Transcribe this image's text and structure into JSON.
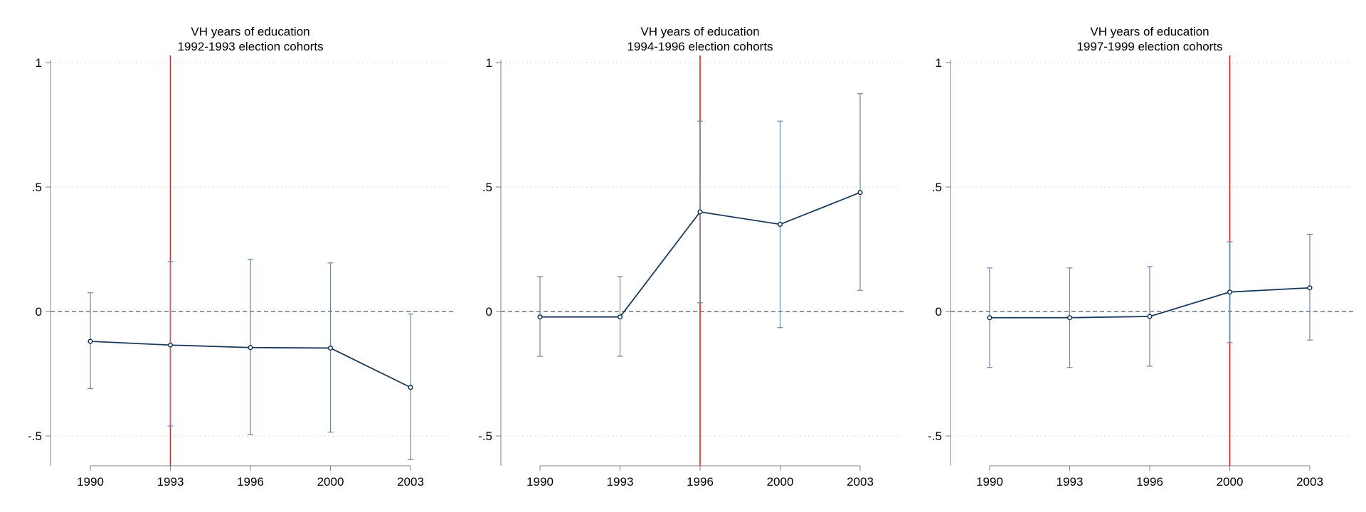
{
  "colors": {
    "series": "#1a3a5c",
    "ci": "#6b86a1",
    "treatment": "#e8201c",
    "zero_line": "#4a5a6a",
    "grid": "#d6dde4",
    "axis": "#808080"
  },
  "chart_data": [
    {
      "type": "line",
      "title": "VH years of education",
      "subtitle": "1992-1993 election cohorts",
      "x": [
        "1990",
        "1993",
        "1996",
        "2000",
        "2003"
      ],
      "ylim": [
        -0.6,
        1.0
      ],
      "yticks": [
        1,
        0.5,
        0,
        -0.5
      ],
      "ytick_labels": [
        "1",
        ".5",
        "0",
        "-.5"
      ],
      "grid": true,
      "treatment_year": "1993",
      "series": [
        {
          "values": [
            -0.12,
            -0.135,
            -0.145,
            -0.147,
            -0.305
          ],
          "ci_low": [
            -0.31,
            -0.46,
            -0.495,
            -0.485,
            -0.595
          ],
          "ci_high": [
            0.075,
            0.2,
            0.21,
            0.195,
            -0.01
          ]
        }
      ]
    },
    {
      "type": "line",
      "title": "VH years of education",
      "subtitle": "1994-1996 election cohorts",
      "x": [
        "1990",
        "1993",
        "1996",
        "2000",
        "2003"
      ],
      "ylim": [
        -0.6,
        1.0
      ],
      "yticks": [
        1,
        0.5,
        0,
        -0.5
      ],
      "ytick_labels": [
        "1",
        ".5",
        "0",
        "-.5"
      ],
      "grid": true,
      "treatment_year": "1996",
      "series": [
        {
          "values": [
            -0.022,
            -0.022,
            0.4,
            0.35,
            0.478
          ],
          "ci_low": [
            -0.18,
            -0.18,
            0.035,
            -0.065,
            0.085
          ],
          "ci_high": [
            0.14,
            0.14,
            0.765,
            0.765,
            0.875
          ]
        }
      ]
    },
    {
      "type": "line",
      "title": "VH years of education",
      "subtitle": "1997-1999 election cohorts",
      "x": [
        "1990",
        "1993",
        "1996",
        "2000",
        "2003"
      ],
      "ylim": [
        -0.6,
        1.0
      ],
      "yticks": [
        1,
        0.5,
        0,
        -0.5
      ],
      "ytick_labels": [
        "1",
        ".5",
        "0",
        "-.5"
      ],
      "grid": true,
      "treatment_year": "2000",
      "series": [
        {
          "values": [
            -0.025,
            -0.025,
            -0.02,
            0.078,
            0.095
          ],
          "ci_low": [
            -0.225,
            -0.225,
            -0.22,
            -0.125,
            -0.115
          ],
          "ci_high": [
            0.175,
            0.175,
            0.18,
            0.28,
            0.31
          ]
        }
      ]
    }
  ]
}
